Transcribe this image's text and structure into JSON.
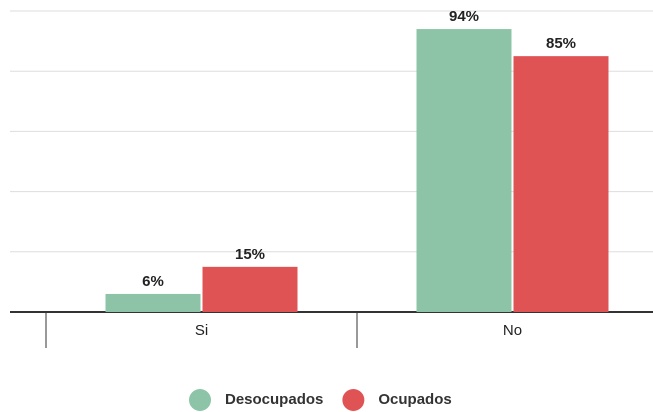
{
  "chart_data": {
    "type": "bar",
    "categories": [
      "Si",
      "No"
    ],
    "series": [
      {
        "name": "Desocupados",
        "color": "#8dc4a7",
        "values": [
          6,
          94
        ],
        "value_labels": [
          "6%",
          "94%"
        ]
      },
      {
        "name": "Ocupados",
        "color": "#e05355",
        "values": [
          15,
          85
        ],
        "value_labels": [
          "15%",
          "85%"
        ]
      }
    ],
    "ylim": [
      0,
      100
    ],
    "yticks": [
      0,
      20,
      40,
      60,
      80,
      100
    ],
    "grid": true,
    "legend": "bottom"
  }
}
